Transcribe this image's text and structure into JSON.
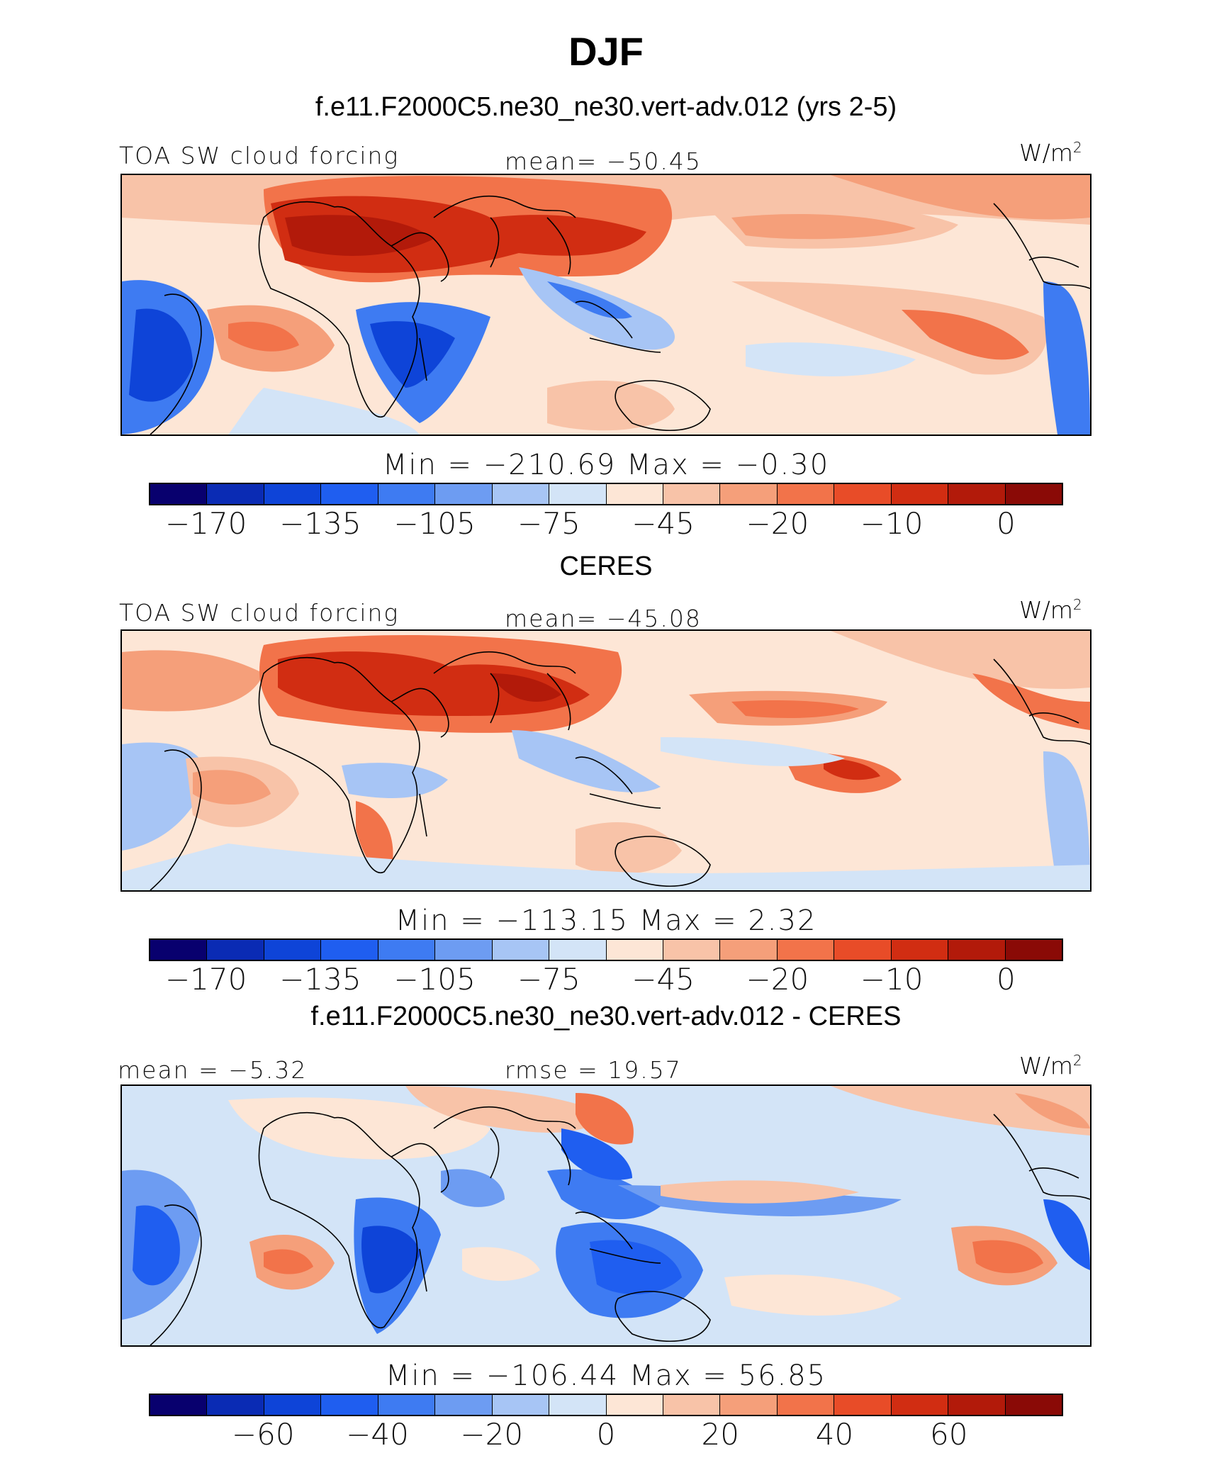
{
  "title": "DJF",
  "panels": [
    {
      "id": "model",
      "heading": "f.e11.F2000C5.ne30_ne30.vert-adv.012 (yrs 2-5)",
      "left_label": "TOA SW cloud forcing",
      "center_label": "mean= −50.45",
      "units": "W/m",
      "units_sup": "2",
      "minmax": "Min  =  −210.69  Max  =   −0.30",
      "colorbar_ticks": [
        "−170",
        "−135",
        "−105",
        "−75",
        "−45",
        "−20",
        "−10",
        "0"
      ]
    },
    {
      "id": "obs",
      "heading": "CERES",
      "left_label": "TOA SW cloud forcing",
      "center_label": "mean= −45.08",
      "units": "W/m",
      "units_sup": "2",
      "minmax": "Min  =  −113.15  Max  =     2.32",
      "colorbar_ticks": [
        "−170",
        "−135",
        "−105",
        "−75",
        "−45",
        "−20",
        "−10",
        "0"
      ]
    },
    {
      "id": "diff",
      "heading": "f.e11.F2000C5.ne30_ne30.vert-adv.012 - CERES",
      "left_label": "mean  =   −5.32",
      "center_label": "rmse  =   19.57",
      "units": "W/m",
      "units_sup": "2",
      "minmax": "Min  =  −106.44  Max  =   56.85",
      "colorbar_ticks": [
        "−60",
        "−40",
        "−20",
        "0",
        "20",
        "40",
        "60"
      ]
    }
  ],
  "colorbar_colors": [
    "#08006e",
    "#0a2bb4",
    "#0e44d8",
    "#1f5ef0",
    "#3e7bf2",
    "#6d9cf2",
    "#a7c5f5",
    "#d3e4f7",
    "#fde6d6",
    "#f8c3a8",
    "#f59f7a",
    "#f2734a",
    "#e84c28",
    "#d12d12",
    "#b21a0a",
    "#8a0a06"
  ]
}
